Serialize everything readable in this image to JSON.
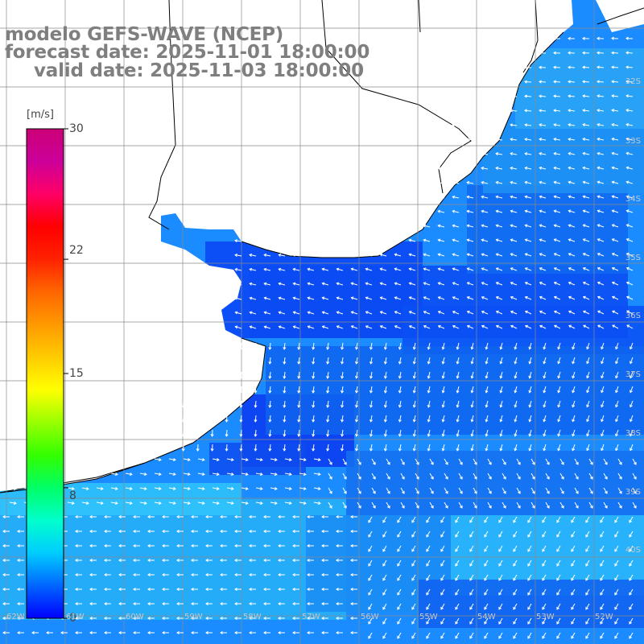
{
  "titles": {
    "line1": "modelo GEFS-WAVE (NCEP)",
    "line2": "forecast date: 2025-11-01 18:00:00",
    "line3": "valid date: 2025-11-03 18:00:00"
  },
  "colorbar": {
    "unit": "[m/s]",
    "ticks": [
      "30",
      "22",
      "15",
      "8",
      "0"
    ],
    "tick_values": [
      30,
      22,
      15,
      8,
      0
    ],
    "colors": [
      "#0000ff",
      "#0066ff",
      "#00ccff",
      "#00ffcc",
      "#00ff66",
      "#33ff00",
      "#99ff00",
      "#ffff00",
      "#ffcc00",
      "#ff9900",
      "#ff6600",
      "#ff2200",
      "#ff0000",
      "#ff0066",
      "#cc0099",
      "#cc0077"
    ]
  },
  "lat_labels": [
    "32S",
    "33S",
    "34S",
    "35S",
    "36S",
    "37S",
    "38S",
    "39S",
    "40S"
  ],
  "lon_labels": [
    "62W",
    "61W",
    "60W",
    "59W",
    "58W",
    "57W",
    "56W",
    "55W",
    "54W",
    "53W",
    "52W"
  ],
  "field_colors": {
    "land": "#ffffff",
    "coast": "#000000",
    "grid": "#8a8a8a",
    "arrows": "#ffffff"
  }
}
